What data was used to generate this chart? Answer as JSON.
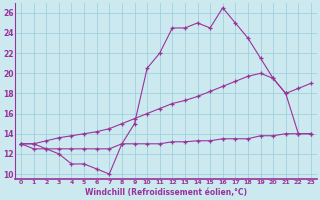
{
  "bg_color": "#cce9f0",
  "line_color": "#993399",
  "grid_color": "#99ccdd",
  "xlabel": "Windchill (Refroidissement éolien,°C)",
  "xlim": [
    -0.5,
    23.5
  ],
  "ylim": [
    9.5,
    27
  ],
  "yticks": [
    10,
    12,
    14,
    16,
    18,
    20,
    22,
    24,
    26
  ],
  "xticks": [
    0,
    1,
    2,
    3,
    4,
    5,
    6,
    7,
    8,
    9,
    10,
    11,
    12,
    13,
    14,
    15,
    16,
    17,
    18,
    19,
    20,
    21,
    22,
    23
  ],
  "series1_x": [
    0,
    1,
    2,
    3,
    4,
    5,
    6,
    7,
    8,
    9,
    10,
    11,
    12,
    13,
    14,
    15,
    16,
    17,
    18,
    19,
    20,
    21,
    22,
    23
  ],
  "series1_y": [
    13.0,
    13.0,
    12.5,
    12.0,
    11.0,
    11.0,
    10.5,
    10.0,
    13.0,
    15.0,
    20.5,
    22.0,
    24.5,
    24.5,
    25.0,
    24.5,
    26.5,
    25.0,
    23.5,
    21.5,
    19.5,
    18.0,
    14.0,
    14.0
  ],
  "series2_x": [
    0,
    1,
    2,
    3,
    4,
    5,
    6,
    7,
    8,
    9,
    10,
    11,
    12,
    13,
    14,
    15,
    16,
    17,
    18,
    19,
    20,
    21,
    22,
    23
  ],
  "series2_y": [
    13.0,
    13.0,
    13.3,
    13.6,
    13.8,
    14.0,
    14.2,
    14.5,
    15.0,
    15.5,
    16.0,
    16.5,
    17.0,
    17.3,
    17.7,
    18.2,
    18.7,
    19.2,
    19.7,
    20.0,
    19.5,
    18.0,
    18.5,
    19.0
  ],
  "series3_x": [
    0,
    1,
    2,
    3,
    4,
    5,
    6,
    7,
    8,
    9,
    10,
    11,
    12,
    13,
    14,
    15,
    16,
    17,
    18,
    19,
    20,
    21,
    22,
    23
  ],
  "series3_y": [
    13.0,
    12.5,
    12.5,
    12.5,
    12.5,
    12.5,
    12.5,
    12.5,
    13.0,
    13.0,
    13.0,
    13.0,
    13.2,
    13.2,
    13.3,
    13.3,
    13.5,
    13.5,
    13.5,
    13.8,
    13.8,
    14.0,
    14.0,
    14.0
  ]
}
